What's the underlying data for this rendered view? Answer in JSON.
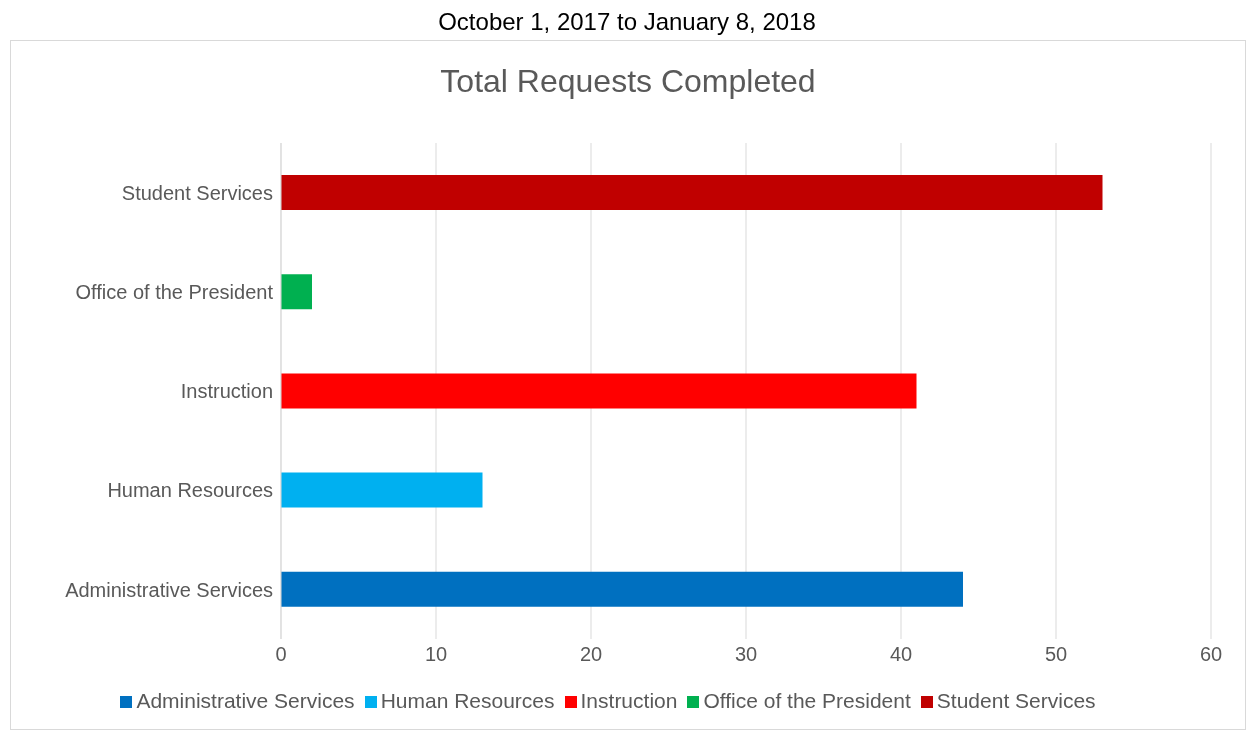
{
  "chart_data": {
    "type": "bar",
    "orientation": "horizontal",
    "stacked": true,
    "title": "Total Requests Completed",
    "subtitle": "October 1, 2017 to January 8, 2018",
    "categories": [
      "Student Services",
      "Office of the President",
      "Instruction",
      "Human Resources",
      "Administrative Services"
    ],
    "series": [
      {
        "name": "Administrative Services",
        "color": "#0070c0",
        "values": [
          null,
          null,
          null,
          null,
          44
        ]
      },
      {
        "name": "Human Resources",
        "color": "#00b0f0",
        "values": [
          null,
          null,
          null,
          13,
          null
        ]
      },
      {
        "name": "Instruction",
        "color": "#ff0000",
        "values": [
          null,
          null,
          41,
          null,
          null
        ]
      },
      {
        "name": "Office of the President",
        "color": "#00b050",
        "values": [
          null,
          2,
          null,
          null,
          null
        ]
      },
      {
        "name": "Student Services",
        "color": "#c00000",
        "values": [
          53,
          null,
          null,
          null,
          null
        ]
      }
    ],
    "xlim": [
      0,
      60
    ],
    "xticks": [
      0,
      10,
      20,
      30,
      40,
      50,
      60
    ],
    "grid": "x",
    "legend": "bottom"
  }
}
